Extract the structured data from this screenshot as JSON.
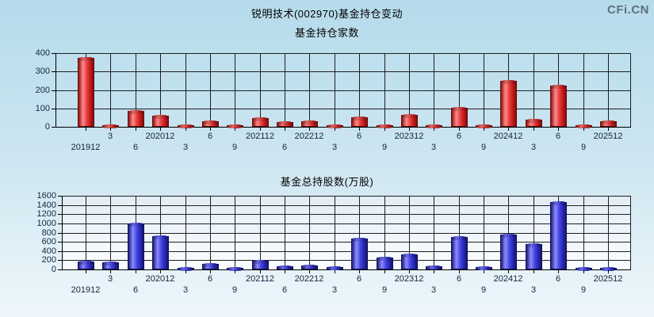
{
  "page": {
    "title": "锐明技术(002970)基金持仓变动",
    "logo": "CFi.CN",
    "background_top": "#b5dbeb",
    "background_bottom": "#eef7fb",
    "grid_color": "#1f1f1f",
    "label_color": "#15253d"
  },
  "chart_data": [
    {
      "type": "bar",
      "title": "基金持仓家数",
      "categories": [
        "201912",
        "20203",
        "20206",
        "202012",
        "20213",
        "20216",
        "20219",
        "202112",
        "20226",
        "202212",
        "20233",
        "20236",
        "20239",
        "202312",
        "20243",
        "20246",
        "20249",
        "202412",
        "20253",
        "20256",
        "20259",
        "202512"
      ],
      "tick_labels": [
        "201912",
        "3",
        "6",
        "202012",
        "3",
        "6",
        "9",
        "202112",
        "6",
        "202212",
        "3",
        "6",
        "9",
        "202312",
        "3",
        "6",
        "9",
        "202412",
        "3",
        "6",
        "9",
        "202512"
      ],
      "values": [
        375,
        5,
        85,
        62,
        6,
        30,
        5,
        48,
        25,
        30,
        5,
        52,
        8,
        65,
        4,
        103,
        3,
        248,
        38,
        222,
        4,
        28
      ],
      "xlabel": "",
      "ylabel": "",
      "ylim": [
        0,
        400
      ],
      "ytick_step": 100,
      "grid": "on",
      "legend": "none",
      "bar_color": "#e03030"
    },
    {
      "type": "bar",
      "title": "基金总持股数(万股)",
      "categories": [
        "201912",
        "20203",
        "20206",
        "202012",
        "20213",
        "20216",
        "20219",
        "202112",
        "20226",
        "202212",
        "20233",
        "20236",
        "20239",
        "202312",
        "20243",
        "20246",
        "20249",
        "202412",
        "20253",
        "20256",
        "20259",
        "202512"
      ],
      "tick_labels": [
        "201912",
        "3",
        "6",
        "202012",
        "3",
        "6",
        "9",
        "202112",
        "6",
        "202212",
        "3",
        "6",
        "9",
        "202312",
        "3",
        "6",
        "9",
        "202412",
        "3",
        "6",
        "9",
        "202512"
      ],
      "values": [
        170,
        150,
        990,
        720,
        40,
        115,
        40,
        195,
        70,
        85,
        55,
        670,
        250,
        330,
        70,
        710,
        45,
        760,
        550,
        1470,
        30,
        40
      ],
      "xlabel": "",
      "ylabel": "",
      "ylim": [
        0,
        1600
      ],
      "ytick_step": 200,
      "grid": "on",
      "legend": "none",
      "bar_color": "#4646e0"
    }
  ]
}
